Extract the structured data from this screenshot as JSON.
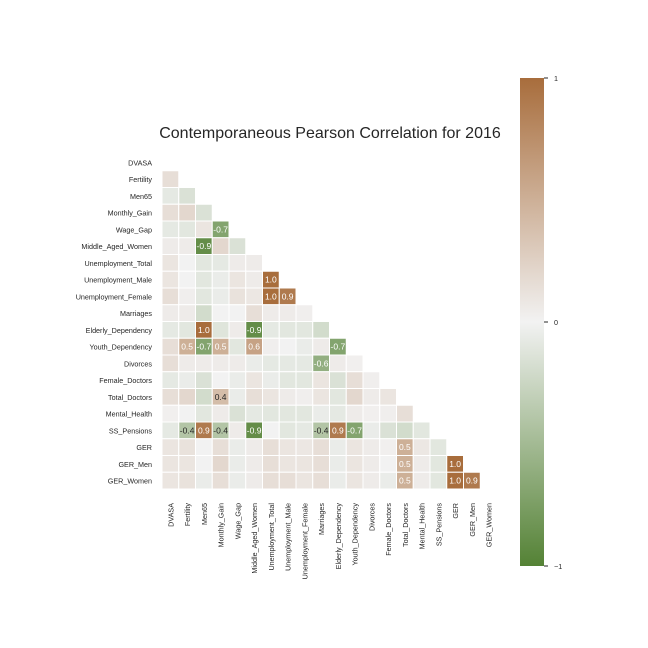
{
  "chart_data": {
    "type": "heatmap",
    "title": "Contemporaneous Pearson Correlation for 2016",
    "variables": [
      "DVASA",
      "Fertility",
      "Men65",
      "Monthly_Gain",
      "Wage_Gap",
      "Middle_Aged_Women",
      "Unemployment_Total",
      "Unemployment_Male",
      "Unemployment_Female",
      "Marriages",
      "Elderly_Dependency",
      "Youth_Dependency",
      "Divorces",
      "Female_Doctors",
      "Total_Doctors",
      "Mental_Health",
      "SS_Pensions",
      "GER",
      "GER_Men",
      "GER_Women"
    ],
    "matrix": [
      [],
      [
        0.15
      ],
      [
        -0.08,
        -0.15
      ],
      [
        0.15,
        0.2,
        -0.15
      ],
      [
        -0.08,
        -0.1,
        0.1,
        -0.7
      ],
      [
        0.05,
        0.05,
        -0.9,
        0.2,
        -0.15
      ],
      [
        0.1,
        0.0,
        -0.1,
        -0.08,
        0.05,
        0.05
      ],
      [
        0.1,
        0.0,
        -0.1,
        -0.05,
        0.1,
        0.05,
        1.0
      ],
      [
        0.15,
        0.03,
        -0.1,
        -0.05,
        0.12,
        0.08,
        1.0,
        0.9
      ],
      [
        0.05,
        0.05,
        -0.2,
        0.0,
        0.0,
        0.15,
        0.05,
        0.05,
        0.03
      ],
      [
        -0.08,
        -0.1,
        1.0,
        -0.12,
        0.05,
        -0.9,
        -0.08,
        -0.1,
        -0.1,
        -0.2
      ],
      [
        0.15,
        0.5,
        -0.7,
        0.5,
        -0.1,
        0.6,
        0.03,
        0.0,
        -0.05,
        0.05,
        -0.7
      ],
      [
        0.15,
        0.05,
        0.05,
        0.05,
        0.05,
        -0.05,
        -0.08,
        -0.08,
        -0.08,
        -0.6,
        0.05,
        0.02
      ],
      [
        -0.08,
        -0.05,
        -0.15,
        0.0,
        -0.05,
        0.1,
        -0.05,
        -0.1,
        -0.1,
        0.1,
        -0.15,
        0.15,
        0.03
      ],
      [
        0.15,
        0.2,
        -0.2,
        0.4,
        -0.05,
        0.15,
        0.1,
        0.05,
        0.03,
        0.1,
        -0.1,
        0.2,
        0.05,
        0.1
      ],
      [
        0.02,
        0.0,
        -0.1,
        0.05,
        -0.15,
        -0.08,
        -0.1,
        -0.1,
        -0.1,
        -0.05,
        -0.08,
        0.05,
        0.02,
        0.03,
        0.15
      ],
      [
        -0.08,
        -0.4,
        0.9,
        -0.4,
        0.05,
        -0.9,
        0.0,
        -0.1,
        -0.08,
        -0.4,
        0.9,
        -0.7,
        -0.05,
        -0.15,
        -0.2,
        -0.1
      ],
      [
        0.1,
        0.12,
        0.0,
        0.15,
        -0.05,
        0.05,
        0.15,
        0.1,
        0.08,
        0.15,
        -0.05,
        0.1,
        0.05,
        0.02,
        0.5,
        0.08,
        -0.1
      ],
      [
        0.1,
        0.1,
        0.0,
        0.2,
        -0.05,
        0.05,
        0.15,
        0.1,
        0.1,
        0.15,
        -0.05,
        0.1,
        0.05,
        0.0,
        0.5,
        0.05,
        -0.1,
        1.0
      ],
      [
        0.1,
        0.12,
        -0.05,
        0.15,
        -0.05,
        0.05,
        0.15,
        0.15,
        0.1,
        0.15,
        -0.05,
        0.1,
        0.05,
        -0.05,
        0.5,
        0.05,
        -0.1,
        1.0,
        0.9
      ]
    ],
    "annotated_cells": [
      {
        "row": 4,
        "col": 3,
        "label": "-0.7"
      },
      {
        "row": 5,
        "col": 2,
        "label": "-0.9"
      },
      {
        "row": 7,
        "col": 6,
        "label": "1.0"
      },
      {
        "row": 8,
        "col": 6,
        "label": "1.0"
      },
      {
        "row": 8,
        "col": 7,
        "label": "0.9"
      },
      {
        "row": 10,
        "col": 2,
        "label": "1.0"
      },
      {
        "row": 10,
        "col": 5,
        "label": "-0.9"
      },
      {
        "row": 11,
        "col": 1,
        "label": "0.5"
      },
      {
        "row": 11,
        "col": 2,
        "label": "-0.7"
      },
      {
        "row": 11,
        "col": 3,
        "label": "0.5"
      },
      {
        "row": 11,
        "col": 5,
        "label": "0.6"
      },
      {
        "row": 11,
        "col": 10,
        "label": "-0.7"
      },
      {
        "row": 12,
        "col": 9,
        "label": "-0.6"
      },
      {
        "row": 14,
        "col": 3,
        "label": "0.4"
      },
      {
        "row": 16,
        "col": 1,
        "label": "-0.4"
      },
      {
        "row": 16,
        "col": 2,
        "label": "0.9"
      },
      {
        "row": 16,
        "col": 3,
        "label": "-0.4"
      },
      {
        "row": 16,
        "col": 5,
        "label": "-0.9"
      },
      {
        "row": 16,
        "col": 9,
        "label": "-0.4"
      },
      {
        "row": 16,
        "col": 10,
        "label": "0.9"
      },
      {
        "row": 16,
        "col": 11,
        "label": "-0.7"
      },
      {
        "row": 17,
        "col": 14,
        "label": "0.5"
      },
      {
        "row": 18,
        "col": 14,
        "label": "0.5"
      },
      {
        "row": 18,
        "col": 17,
        "label": "1.0"
      },
      {
        "row": 19,
        "col": 14,
        "label": "0.5"
      },
      {
        "row": 19,
        "col": 17,
        "label": "1.0"
      },
      {
        "row": 19,
        "col": 18,
        "label": "0.9"
      }
    ],
    "colorbar": {
      "range": [
        -1,
        1
      ],
      "tick_labels": [
        "1",
        "0",
        "−1"
      ],
      "tick_values": [
        1,
        0,
        -1
      ],
      "colors": {
        "negative": "#548235",
        "zero": "#f2f2f2",
        "positive": "#a86d3c"
      }
    },
    "mask": "upper-triangle-including-diagonal"
  }
}
